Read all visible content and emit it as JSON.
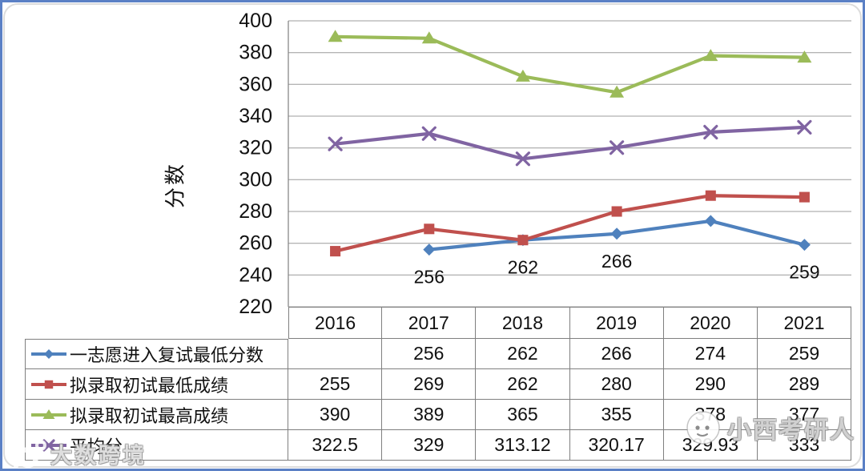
{
  "watermarks": {
    "bottom_left": "大数跨境",
    "bottom_left_logo": "100",
    "bottom_right": "小西考研人"
  },
  "chart_data": {
    "type": "line",
    "title": "",
    "ylabel": "分数",
    "xlabel": "",
    "ylim": [
      220,
      400
    ],
    "ytick_step": 20,
    "grid": true,
    "legend_position": "data-table-left",
    "categories": [
      "2016",
      "2017",
      "2018",
      "2019",
      "2020",
      "2021"
    ],
    "series": [
      {
        "name": "一志愿进入复试最低分数",
        "color": "#4F81BD",
        "marker": "diamond",
        "values": [
          null,
          256,
          262,
          266,
          274,
          259
        ],
        "shown_point_labels": [
          null,
          "256",
          "262",
          "266",
          null,
          "259"
        ]
      },
      {
        "name": "拟录取初试最低成绩",
        "color": "#C0504D",
        "marker": "square",
        "values": [
          255,
          269,
          262,
          280,
          290,
          289
        ],
        "shown_point_labels": []
      },
      {
        "name": "拟录取初试最高成绩",
        "color": "#9BBB59",
        "marker": "triangle",
        "values": [
          390,
          389,
          365,
          355,
          378,
          377
        ],
        "shown_point_labels": []
      },
      {
        "name": "平均分",
        "color": "#8064A2",
        "marker": "x",
        "values": [
          322.5,
          329,
          313.12,
          320.17,
          329.93,
          333
        ],
        "shown_point_labels": []
      }
    ]
  }
}
